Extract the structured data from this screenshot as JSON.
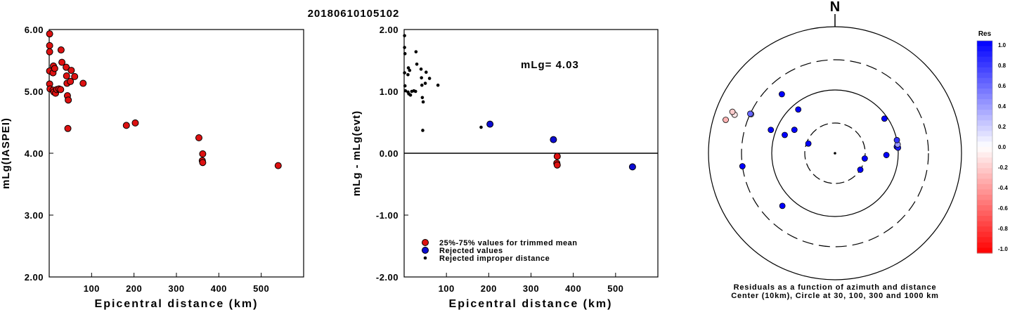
{
  "title": "20180610105102",
  "colors": {
    "trimmed": "#dd1111",
    "rejected": "#0b0bd0",
    "improper": "#000000"
  },
  "chart_data": [
    {
      "type": "scatter",
      "xlabel": "Epicentral distance (km)",
      "ylabel": "mLg(IASPEI)",
      "xlim": [
        0,
        600
      ],
      "ylim": [
        2.0,
        6.0
      ],
      "xticks": [
        "100",
        "200",
        "300",
        "400",
        "500"
      ],
      "yticks": [
        "2.00",
        "3.00",
        "4.00",
        "5.00",
        "6.00"
      ],
      "series": [
        {
          "points": [
            [
              1,
              5.93
            ],
            [
              1,
              5.74
            ],
            [
              1,
              5.64
            ],
            [
              1,
              5.33
            ],
            [
              1,
              5.12
            ],
            [
              2,
              5.04
            ],
            [
              9,
              5.02
            ],
            [
              9,
              5.3
            ],
            [
              10,
              5.41
            ],
            [
              13,
              5.37
            ],
            [
              11,
              4.99
            ],
            [
              15,
              4.97
            ],
            [
              18,
              5.03
            ],
            [
              23,
              5.04
            ],
            [
              27,
              5.03
            ],
            [
              28,
              5.67
            ],
            [
              30,
              5.47
            ],
            [
              40,
              5.39
            ],
            [
              41,
              5.25
            ],
            [
              42,
              5.13
            ],
            [
              43,
              4.93
            ],
            [
              45,
              4.86
            ],
            [
              44,
              4.4
            ],
            [
              50,
              5.16
            ],
            [
              52,
              5.34
            ],
            [
              60,
              5.24
            ],
            [
              80,
              5.13
            ],
            [
              182,
              4.45
            ],
            [
              203,
              4.49
            ],
            [
              353,
              4.25
            ],
            [
              362,
              3.99
            ],
            [
              361,
              3.88
            ],
            [
              362,
              3.85
            ],
            [
              540,
              3.8
            ]
          ]
        }
      ]
    },
    {
      "type": "scatter",
      "xlabel": "Epicentral distance (km)",
      "ylabel": "mLg - mLg(evt)",
      "xlim": [
        0,
        600
      ],
      "ylim": [
        -2.0,
        2.0
      ],
      "xticks": [
        "100",
        "200",
        "300",
        "400",
        "500"
      ],
      "yticks": [
        "-2.00",
        "-1.00",
        "0.00",
        "1.00",
        "2.00"
      ],
      "annotation": "mLg= 4.03",
      "legend": {
        "placement": "bottom-left",
        "entries": [
          "25%-75% values for trimmed mean",
          "Rejected values",
          "Rejected improper distance"
        ]
      },
      "series": [
        {
          "points": [
            [
              362,
              -0.05
            ],
            [
              361,
              -0.16
            ],
            [
              362,
              -0.19
            ]
          ]
        },
        {
          "points": [
            [
              203,
              0.47
            ],
            [
              353,
              0.22
            ],
            [
              540,
              -0.22
            ]
          ]
        },
        {
          "points": [
            [
              1,
              1.9
            ],
            [
              1,
              1.71
            ],
            [
              2,
              1.61
            ],
            [
              1,
              1.3
            ],
            [
              2,
              1.09
            ],
            [
              3,
              1.01
            ],
            [
              9,
              0.99
            ],
            [
              9,
              1.27
            ],
            [
              10,
              1.38
            ],
            [
              13,
              1.34
            ],
            [
              11,
              0.96
            ],
            [
              15,
              0.94
            ],
            [
              18,
              1.0
            ],
            [
              23,
              1.01
            ],
            [
              27,
              1.0
            ],
            [
              28,
              1.64
            ],
            [
              30,
              1.44
            ],
            [
              40,
              1.36
            ],
            [
              41,
              1.22
            ],
            [
              42,
              1.1
            ],
            [
              43,
              0.9
            ],
            [
              45,
              0.83
            ],
            [
              44,
              0.37
            ],
            [
              50,
              1.13
            ],
            [
              52,
              1.31
            ],
            [
              60,
              1.21
            ],
            [
              80,
              1.1
            ],
            [
              182,
              0.42
            ]
          ]
        }
      ]
    },
    {
      "type": "polar-scatter",
      "north_label": "N",
      "caption_line1": "Residuals as a function of azimuth and distance",
      "caption_line2": "Center (10km), Circle at 30, 100, 300 and 1000 km",
      "colorbar": {
        "title": "Res",
        "range": [
          -1.0,
          1.0
        ],
        "ticks": [
          "1.0",
          "0.8",
          "0.6",
          "0.4",
          "0.2",
          "0.0",
          "-0.2",
          "-0.4",
          "-0.6",
          "-0.8",
          "-1.0"
        ]
      },
      "stations": [
        {
          "az": 123,
          "dist": 30,
          "res": 1.0
        },
        {
          "az": 262,
          "dist": 300,
          "res": 1.0
        },
        {
          "az": 320,
          "dist": 80,
          "res": 1.0
        },
        {
          "az": 290,
          "dist": 120,
          "res": 1.0
        },
        {
          "az": 290,
          "dist": 70,
          "res": 1.0
        },
        {
          "az": 55,
          "dist": 90,
          "res": 1.0
        },
        {
          "az": 318,
          "dist": 180,
          "res": 1.0
        },
        {
          "az": 300,
          "dist": 55,
          "res": 1.0
        },
        {
          "az": 290,
          "dist": 28,
          "res": 1.0
        },
        {
          "az": 100,
          "dist": 30,
          "res": 1.0
        },
        {
          "az": 92,
          "dist": 65,
          "res": 1.0
        },
        {
          "az": 225,
          "dist": 150,
          "res": 1.0
        },
        {
          "az": 84,
          "dist": 96,
          "res": 1.0
        },
        {
          "az": 85,
          "dist": 100,
          "res": 0.9
        },
        {
          "az": 82,
          "dist": 100,
          "res": 0.4
        },
        {
          "az": 78,
          "dist": 100,
          "res": 0.8
        },
        {
          "az": 295,
          "dist": 290,
          "res": 0.4
        },
        {
          "az": 295,
          "dist": 300,
          "res": 0.6
        },
        {
          "az": 291,
          "dist": 500,
          "res": -0.1
        },
        {
          "az": 292,
          "dist": 560,
          "res": -0.2
        },
        {
          "az": 287,
          "dist": 640,
          "res": -0.3
        }
      ]
    }
  ]
}
